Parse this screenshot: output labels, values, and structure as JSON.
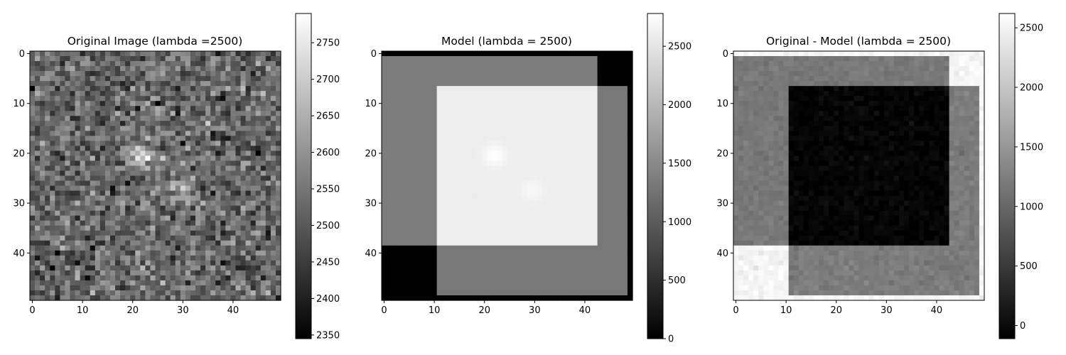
{
  "chart_data": [
    {
      "type": "heatmap",
      "title": "Original Image (lambda =2500)",
      "colormap": "gray",
      "grid_shape": [
        50,
        50
      ],
      "x_ticks": [
        0,
        10,
        20,
        30,
        40
      ],
      "y_ticks": [
        0,
        10,
        20,
        30,
        40
      ],
      "colorbar": {
        "range": [
          2345,
          2790
        ],
        "ticks": [
          2350,
          2400,
          2450,
          2500,
          2550,
          2600,
          2650,
          2700,
          2750
        ]
      },
      "image": {
        "kind": "noise_with_sources",
        "background": 2525,
        "noise_sd": 55,
        "sources": [
          {
            "x": 22,
            "y": 20.5,
            "amplitude": 200,
            "sigma": 1.6
          },
          {
            "x": 29.5,
            "y": 27.5,
            "amplitude": 110,
            "sigma": 1.8
          }
        ]
      }
    },
    {
      "type": "heatmap",
      "title": "Model (lambda = 2500)",
      "colormap": "gray",
      "grid_shape": [
        50,
        50
      ],
      "x_ticks": [
        0,
        10,
        20,
        30,
        40
      ],
      "y_ticks": [
        0,
        10,
        20,
        30,
        40
      ],
      "colorbar": {
        "range": [
          0,
          2780
        ],
        "ticks": [
          0,
          500,
          1000,
          1500,
          2000,
          2500
        ]
      },
      "image": {
        "kind": "model_rectangles",
        "background": 0,
        "rect_a": {
          "cols": [
            0,
            43
          ],
          "rows": [
            1,
            39
          ],
          "value": 1350
        },
        "rect_b": {
          "cols": [
            10.5,
            49
          ],
          "rows": [
            6.3,
            48.5
          ],
          "value": 1310
        },
        "overlap_value": 2580,
        "sources": [
          {
            "x": 22,
            "y": 20.5,
            "amplitude": 200,
            "sigma": 1.6
          },
          {
            "x": 29.5,
            "y": 27.5,
            "amplitude": 110,
            "sigma": 1.8
          }
        ]
      }
    },
    {
      "type": "heatmap",
      "title": "Original - Model (lambda = 2500)",
      "colormap": "gray",
      "grid_shape": [
        50,
        50
      ],
      "x_ticks": [
        0,
        10,
        20,
        30,
        40
      ],
      "y_ticks": [
        0,
        10,
        20,
        30,
        40
      ],
      "colorbar": {
        "range": [
          -110,
          2620
        ],
        "ticks": [
          0,
          500,
          1000,
          1500,
          2000,
          2500
        ]
      },
      "image": {
        "kind": "residual_of_model",
        "original_background": 2525,
        "noise_sd": 55
      }
    }
  ]
}
